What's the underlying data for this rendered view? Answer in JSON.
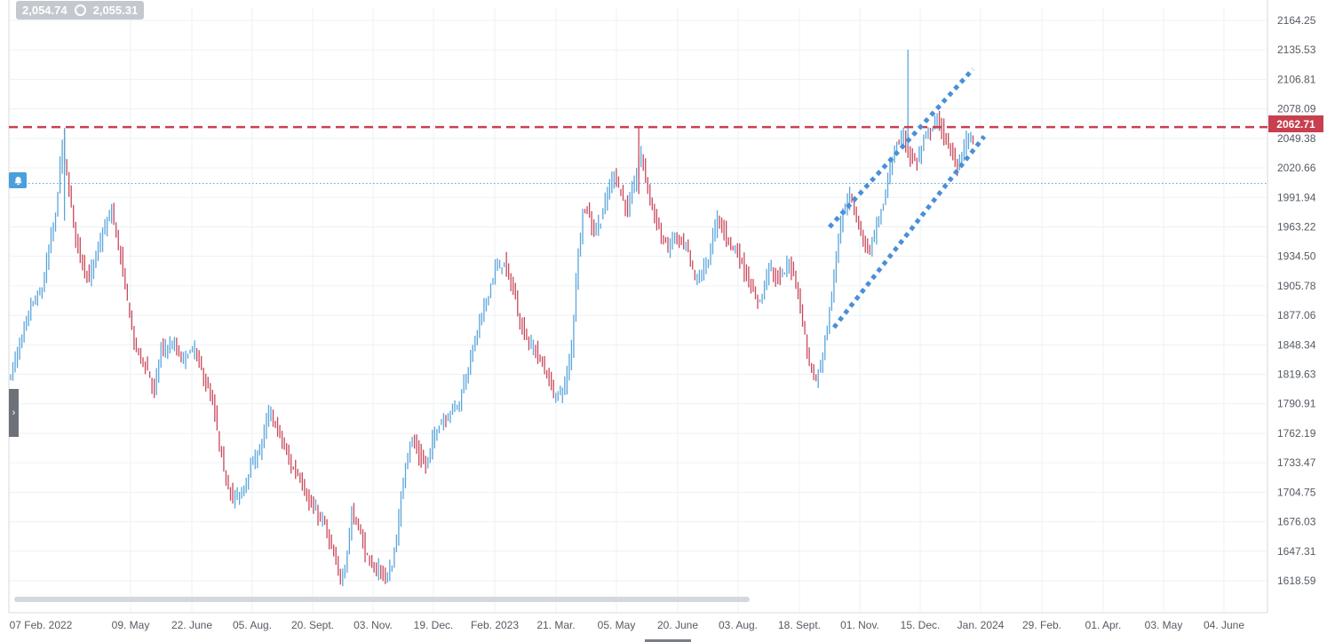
{
  "hud": {
    "bid": "2,054.74",
    "ask": "2,055.31"
  },
  "current_price_label": "2062.71",
  "colors": {
    "up": "#5aa6dc",
    "down": "#c9485b",
    "resistance": "#c8404f",
    "channel": "#4a8fd8",
    "grid": "#eef0f3"
  },
  "icons": {
    "alert": "bell-icon",
    "toggle": "chevron-right-icon",
    "hud_marker": "circle-icon"
  },
  "chart_data": {
    "type": "ohlc",
    "y_ticks": [
      "2164.25",
      "2135.53",
      "2106.81",
      "2078.09",
      "2049.38",
      "2020.66",
      "1991.94",
      "1963.22",
      "1934.50",
      "1905.78",
      "1877.06",
      "1848.34",
      "1819.63",
      "1790.91",
      "1762.19",
      "1733.47",
      "1704.75",
      "1676.03",
      "1647.31",
      "1618.59"
    ],
    "x_ticks": [
      "07 Feb. 2022",
      "09. May",
      "22. June",
      "05. Aug.",
      "20. Sept.",
      "03. Nov.",
      "19. Dec.",
      "Feb. 2023",
      "21. Mar.",
      "05. May",
      "20. June",
      "03. Aug.",
      "18. Sept.",
      "01. Nov.",
      "15. Dec.",
      "Jan. 2024",
      "29. Feb.",
      "01. Apr.",
      "03. May",
      "04. June"
    ],
    "ylim": [
      1608,
      2175
    ],
    "price_path": [
      [
        0,
        1825
      ],
      [
        6,
        1865
      ],
      [
        10,
        1895
      ],
      [
        15,
        1910
      ],
      [
        19,
        1960
      ],
      [
        21,
        1980
      ],
      [
        24,
        2050
      ],
      [
        27,
        2002
      ],
      [
        30,
        1960
      ],
      [
        33,
        1935
      ],
      [
        36,
        1920
      ],
      [
        40,
        1950
      ],
      [
        46,
        1985
      ],
      [
        50,
        1940
      ],
      [
        56,
        1860
      ],
      [
        62,
        1835
      ],
      [
        65,
        1815
      ],
      [
        68,
        1855
      ],
      [
        74,
        1858
      ],
      [
        77,
        1845
      ],
      [
        83,
        1855
      ],
      [
        87,
        1828
      ],
      [
        91,
        1805
      ],
      [
        96,
        1740
      ],
      [
        100,
        1715
      ],
      [
        104,
        1720
      ],
      [
        107,
        1740
      ],
      [
        112,
        1760
      ],
      [
        116,
        1795
      ],
      [
        120,
        1780
      ],
      [
        126,
        1745
      ],
      [
        130,
        1735
      ],
      [
        134,
        1710
      ],
      [
        138,
        1700
      ],
      [
        141,
        1690
      ],
      [
        145,
        1660
      ],
      [
        148,
        1640
      ],
      [
        150,
        1650
      ],
      [
        153,
        1700
      ],
      [
        156,
        1690
      ],
      [
        159,
        1665
      ],
      [
        162,
        1648
      ],
      [
        165,
        1650
      ],
      [
        168,
        1640
      ],
      [
        171,
        1650
      ],
      [
        174,
        1695
      ],
      [
        177,
        1750
      ],
      [
        180,
        1770
      ],
      [
        183,
        1755
      ],
      [
        186,
        1745
      ],
      [
        189,
        1768
      ],
      [
        192,
        1785
      ],
      [
        195,
        1790
      ],
      [
        198,
        1800
      ],
      [
        201,
        1805
      ],
      [
        204,
        1830
      ],
      [
        207,
        1855
      ],
      [
        210,
        1880
      ],
      [
        213,
        1900
      ],
      [
        217,
        1930
      ],
      [
        221,
        1935
      ],
      [
        225,
        1910
      ],
      [
        228,
        1880
      ],
      [
        232,
        1860
      ],
      [
        236,
        1850
      ],
      [
        240,
        1830
      ],
      [
        244,
        1810
      ],
      [
        248,
        1820
      ],
      [
        251,
        1855
      ],
      [
        253,
        1920
      ],
      [
        256,
        1985
      ],
      [
        258,
        1985
      ],
      [
        261,
        1965
      ],
      [
        264,
        1975
      ],
      [
        267,
        2000
      ],
      [
        270,
        2020
      ],
      [
        273,
        2000
      ],
      [
        276,
        1985
      ],
      [
        279,
        2010
      ],
      [
        282,
        2038
      ],
      [
        285,
        2005
      ],
      [
        288,
        1980
      ],
      [
        291,
        1960
      ],
      [
        294,
        1950
      ],
      [
        297,
        1960
      ],
      [
        300,
        1955
      ],
      [
        303,
        1945
      ],
      [
        306,
        1920
      ],
      [
        309,
        1925
      ],
      [
        312,
        1940
      ],
      [
        316,
        1978
      ],
      [
        320,
        1960
      ],
      [
        324,
        1948
      ],
      [
        327,
        1935
      ],
      [
        330,
        1918
      ],
      [
        333,
        1900
      ],
      [
        336,
        1905
      ],
      [
        339,
        1935
      ],
      [
        342,
        1920
      ],
      [
        345,
        1925
      ],
      [
        348,
        1935
      ],
      [
        351,
        1920
      ],
      [
        354,
        1880
      ],
      [
        357,
        1840
      ],
      [
        360,
        1825
      ],
      [
        363,
        1850
      ],
      [
        366,
        1890
      ],
      [
        369,
        1940
      ],
      [
        372,
        1985
      ],
      [
        375,
        2000
      ],
      [
        378,
        1980
      ],
      [
        381,
        1955
      ],
      [
        384,
        1948
      ],
      [
        387,
        1970
      ],
      [
        390,
        1990
      ],
      [
        393,
        2025
      ],
      [
        396,
        2045
      ],
      [
        399,
        2055
      ],
      [
        402,
        2035
      ],
      [
        405,
        2030
      ],
      [
        408,
        2050
      ],
      [
        411,
        2060
      ],
      [
        414,
        2070
      ],
      [
        417,
        2055
      ],
      [
        420,
        2040
      ],
      [
        423,
        2025
      ],
      [
        426,
        2045
      ],
      [
        429,
        2055
      ]
    ],
    "series": [
      {
        "name": "",
        "x": [
          0,
          429
        ]
      }
    ],
    "resistance_level": 2062.71,
    "alert_level": 2010.0,
    "channel_lines": {
      "upper": {
        "start": [
          365,
          1969
        ],
        "end": [
          429,
          2117
        ]
      },
      "lower": {
        "start": [
          367,
          1875
        ],
        "end": [
          434,
          2054
        ]
      }
    },
    "grid": true,
    "scrollbar_visible": true
  }
}
